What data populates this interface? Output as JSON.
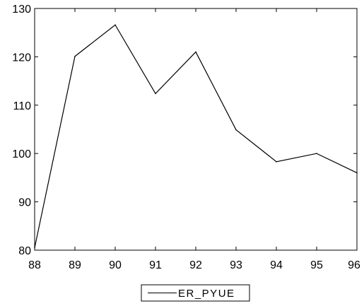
{
  "chart_data": {
    "type": "line",
    "title": "",
    "xlabel": "",
    "ylabel": "",
    "categories": [
      "88",
      "89",
      "90",
      "91",
      "92",
      "93",
      "94",
      "95",
      "96"
    ],
    "x": [
      88,
      89,
      90,
      91,
      92,
      93,
      94,
      95,
      96
    ],
    "xlim": [
      88,
      96
    ],
    "ylim": [
      80,
      130
    ],
    "yticks": [
      80,
      90,
      100,
      110,
      120,
      130
    ],
    "grid": false,
    "legend_position": "bottom-center",
    "series": [
      {
        "name": "ER_PYUE",
        "color": "#000000",
        "values": [
          80.5,
          120.1,
          126.6,
          112.4,
          121.0,
          104.9,
          98.3,
          100.0,
          96.0
        ]
      }
    ]
  }
}
